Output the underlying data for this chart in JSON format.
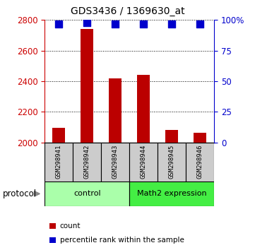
{
  "title": "GDS3436 / 1369630_at",
  "samples": [
    "GSM298941",
    "GSM298942",
    "GSM298943",
    "GSM298944",
    "GSM298945",
    "GSM298946"
  ],
  "counts": [
    2095,
    2740,
    2420,
    2440,
    2080,
    2065
  ],
  "percentile_ranks": [
    97,
    98,
    97,
    97,
    97,
    97
  ],
  "ylim_left": [
    2000,
    2800
  ],
  "ylim_right": [
    0,
    100
  ],
  "yticks_left": [
    2000,
    2200,
    2400,
    2600,
    2800
  ],
  "yticks_right": [
    0,
    25,
    50,
    75,
    100
  ],
  "ytick_labels_right": [
    "0",
    "25",
    "50",
    "75",
    "100%"
  ],
  "bar_color": "#bb0000",
  "scatter_color": "#0000cc",
  "group_control_color": "#aaffaa",
  "group_math2_color": "#44ee44",
  "groups": [
    {
      "label": "control",
      "start": 0,
      "end": 2
    },
    {
      "label": "Math2 expression",
      "start": 3,
      "end": 5
    }
  ],
  "protocol_label": "protocol",
  "legend_items": [
    {
      "color": "#bb0000",
      "label": "count"
    },
    {
      "color": "#0000cc",
      "label": "percentile rank within the sample"
    }
  ],
  "background_color": "#ffffff",
  "left_axis_color": "#cc0000",
  "right_axis_color": "#0000cc",
  "bar_width": 0.45,
  "scatter_size": 50
}
